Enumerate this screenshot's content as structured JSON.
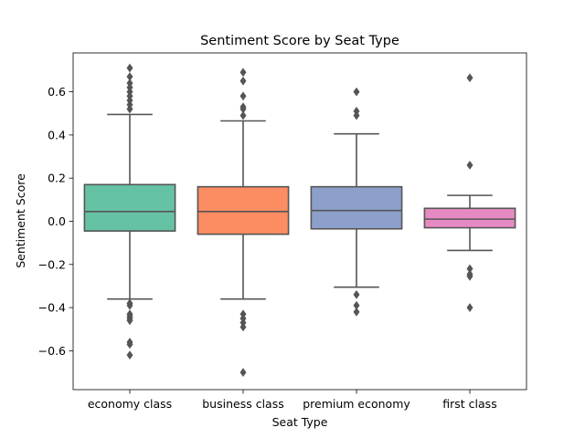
{
  "chart_data": {
    "type": "box",
    "title": "Sentiment Score by Seat Type",
    "xlabel": "Seat Type",
    "ylabel": "Sentiment Score",
    "ylim": [
      -0.78,
      0.78
    ],
    "yticks": [
      -0.6,
      -0.4,
      -0.2,
      0.0,
      0.2,
      0.4,
      0.6
    ],
    "ytick_labels": [
      "−0.6",
      "−0.4",
      "−0.2",
      "0.0",
      "0.2",
      "0.4",
      "0.6"
    ],
    "grid": false,
    "categories": [
      "economy class",
      "business class",
      "premium economy",
      "first class"
    ],
    "colors": [
      "#66c2a5",
      "#fc8d62",
      "#8da0cb",
      "#e78ac3"
    ],
    "edge_color": "#555555",
    "boxes": [
      {
        "category": "economy class",
        "q1": -0.045,
        "median": 0.045,
        "q3": 0.17,
        "whisker_low": -0.36,
        "whisker_high": 0.495,
        "outliers": [
          0.71,
          0.67,
          0.64,
          0.62,
          0.6,
          0.58,
          0.56,
          0.54,
          0.52,
          -0.38,
          -0.39,
          -0.43,
          -0.44,
          -0.45,
          -0.46,
          -0.56,
          -0.57,
          -0.62
        ]
      },
      {
        "category": "business class",
        "q1": -0.06,
        "median": 0.045,
        "q3": 0.16,
        "whisker_low": -0.36,
        "whisker_high": 0.465,
        "outliers": [
          0.69,
          0.65,
          0.58,
          0.53,
          0.52,
          0.49,
          -0.43,
          -0.45,
          -0.47,
          -0.49,
          -0.7
        ]
      },
      {
        "category": "premium economy",
        "q1": -0.035,
        "median": 0.05,
        "q3": 0.16,
        "whisker_low": -0.305,
        "whisker_high": 0.405,
        "outliers": [
          0.6,
          0.51,
          0.49,
          -0.34,
          -0.39,
          -0.42
        ]
      },
      {
        "category": "first class",
        "q1": -0.03,
        "median": 0.01,
        "q3": 0.06,
        "whisker_low": -0.135,
        "whisker_high": 0.12,
        "outliers": [
          0.665,
          0.26,
          -0.22,
          -0.245,
          -0.255,
          -0.4
        ]
      }
    ]
  }
}
